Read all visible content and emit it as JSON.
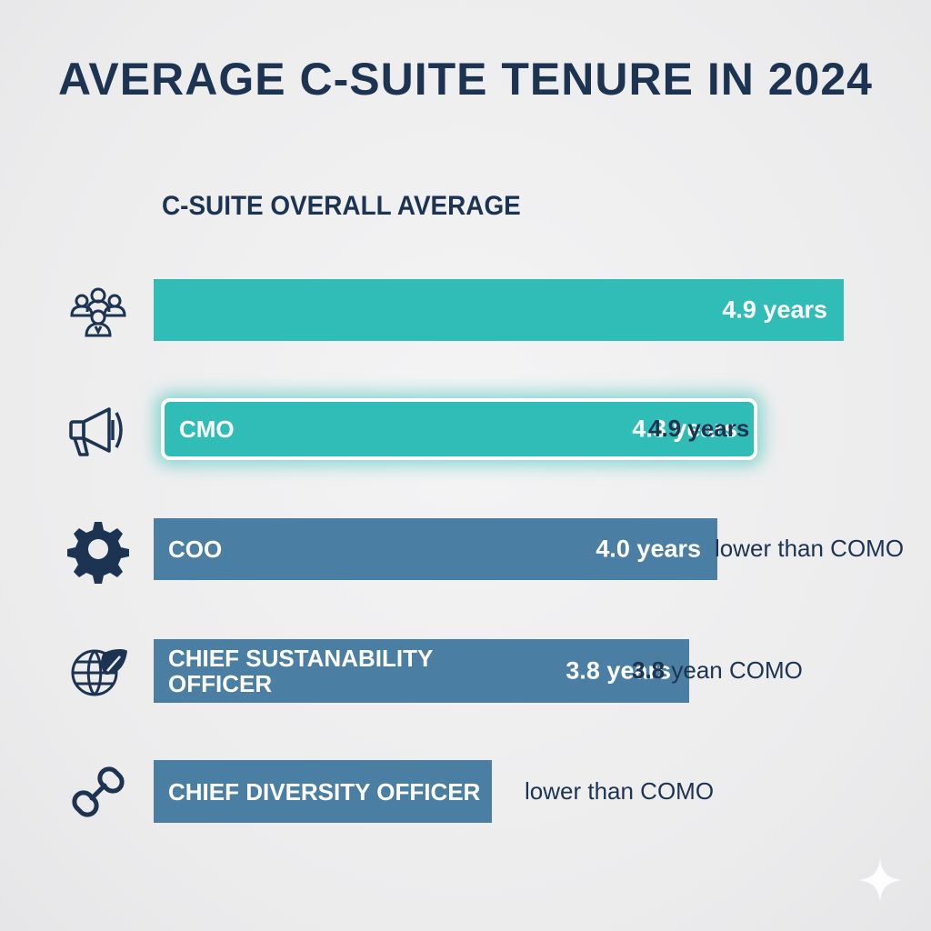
{
  "title": "AVERAGE C-SUITE TENURE IN 2024",
  "subtitle": "C-SUITE OVERALL AVERAGE",
  "colors": {
    "teal": "#31bdb7",
    "steel": "#4a7ea2",
    "navy": "#1c3452"
  },
  "chart_data": {
    "type": "bar",
    "orientation": "horizontal",
    "title": "AVERAGE C-SUITE TENURE IN 2024",
    "subtitle": "C-SUITE OVERALL AVERAGE",
    "unit": "years",
    "xlim": [
      0,
      5.5
    ],
    "grid": false,
    "rows": [
      {
        "category": "",
        "icon": "team-icon",
        "value": 4.9,
        "value_label": "4.9 years",
        "color": "#31bdb7",
        "highlight": false,
        "note": ""
      },
      {
        "category": "CMO",
        "icon": "megaphone-icon",
        "value": 4.3,
        "value_label": "4.3 years",
        "color": "#31bdb7",
        "highlight": true,
        "note": "4.9 years"
      },
      {
        "category": "COO",
        "icon": "gear-icon",
        "value": 4.0,
        "value_label": "4.0 years",
        "color": "#4a7ea2",
        "highlight": false,
        "note": "lower than COMO"
      },
      {
        "category": "CHIEF SUSTANABILITY OFFICER",
        "icon": "globe-leaf-icon",
        "value": 3.8,
        "value_label": "3.8 years",
        "color": "#4a7ea2",
        "highlight": false,
        "note": "3.8 yean COMO",
        "note_bold": "3.8"
      },
      {
        "category": "CHIEF DIVERSITY OFFICER",
        "icon": "link-icon",
        "value": 2.4,
        "value_label": "",
        "color": "#4a7ea2",
        "highlight": false,
        "note": "lower than COMO"
      }
    ]
  }
}
